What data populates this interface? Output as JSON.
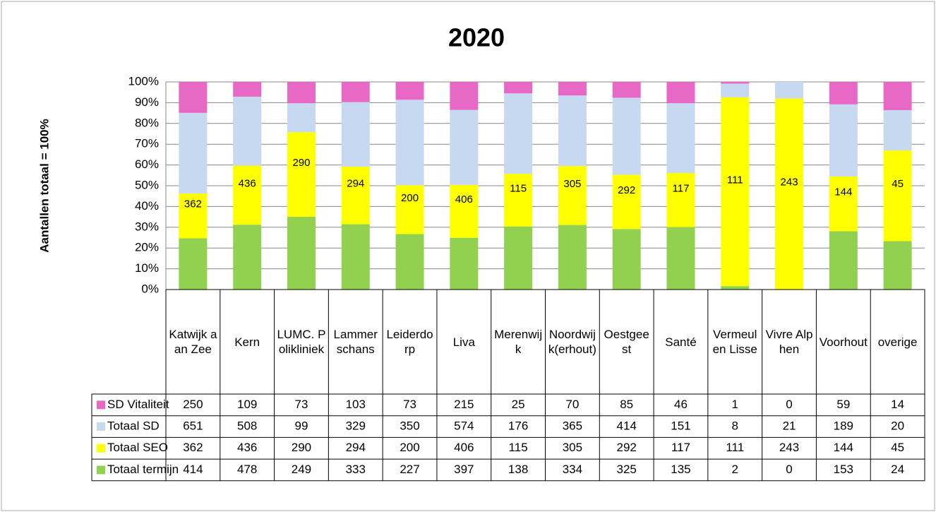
{
  "chart_data": {
    "type": "stacked_percent_bar",
    "title": "2020",
    "y_label": "Aantallen totaal = 100%",
    "categories": [
      "Katwijk aan Zee",
      "Kern",
      "LUMC. Polikliniek",
      "Lammerschans",
      "Leiderdorp",
      "Liva",
      "Merenwijk",
      "Noordwijk(erhout)",
      "Oestgeest",
      "Santé",
      "Vermeulen Lisse",
      "Vivre Alphen",
      "Voorhout",
      "overige"
    ],
    "series": [
      {
        "name": "Totaal termijn",
        "color": "#92d050",
        "values": [
          414,
          478,
          249,
          333,
          227,
          397,
          138,
          334,
          325,
          135,
          2,
          0,
          153,
          24
        ]
      },
      {
        "name": "Totaal SEO",
        "color": "#ffff00",
        "show_labels": true,
        "values": [
          362,
          436,
          290,
          294,
          200,
          406,
          115,
          305,
          292,
          117,
          111,
          243,
          144,
          45
        ]
      },
      {
        "name": "Totaal SD",
        "color": "#c6d9f1",
        "values": [
          651,
          508,
          99,
          329,
          350,
          574,
          176,
          365,
          414,
          151,
          8,
          21,
          189,
          20
        ]
      },
      {
        "name": "SD Vitaliteit",
        "color": "#e868c6",
        "values": [
          250,
          109,
          73,
          103,
          73,
          215,
          25,
          70,
          85,
          46,
          1,
          0,
          59,
          14
        ]
      }
    ],
    "ylim": [
      0,
      100
    ],
    "yticks": [
      {
        "value": 0,
        "label": "0%"
      },
      {
        "value": 10,
        "label": "10%"
      },
      {
        "value": 20,
        "label": "20%"
      },
      {
        "value": 30,
        "label": "30%"
      },
      {
        "value": 40,
        "label": "40%"
      },
      {
        "value": 50,
        "label": "50%"
      },
      {
        "value": 60,
        "label": "60%"
      },
      {
        "value": 70,
        "label": "70%"
      },
      {
        "value": 80,
        "label": "80%"
      },
      {
        "value": 90,
        "label": "90%"
      },
      {
        "value": 100,
        "label": "100%"
      }
    ],
    "grid": true
  }
}
